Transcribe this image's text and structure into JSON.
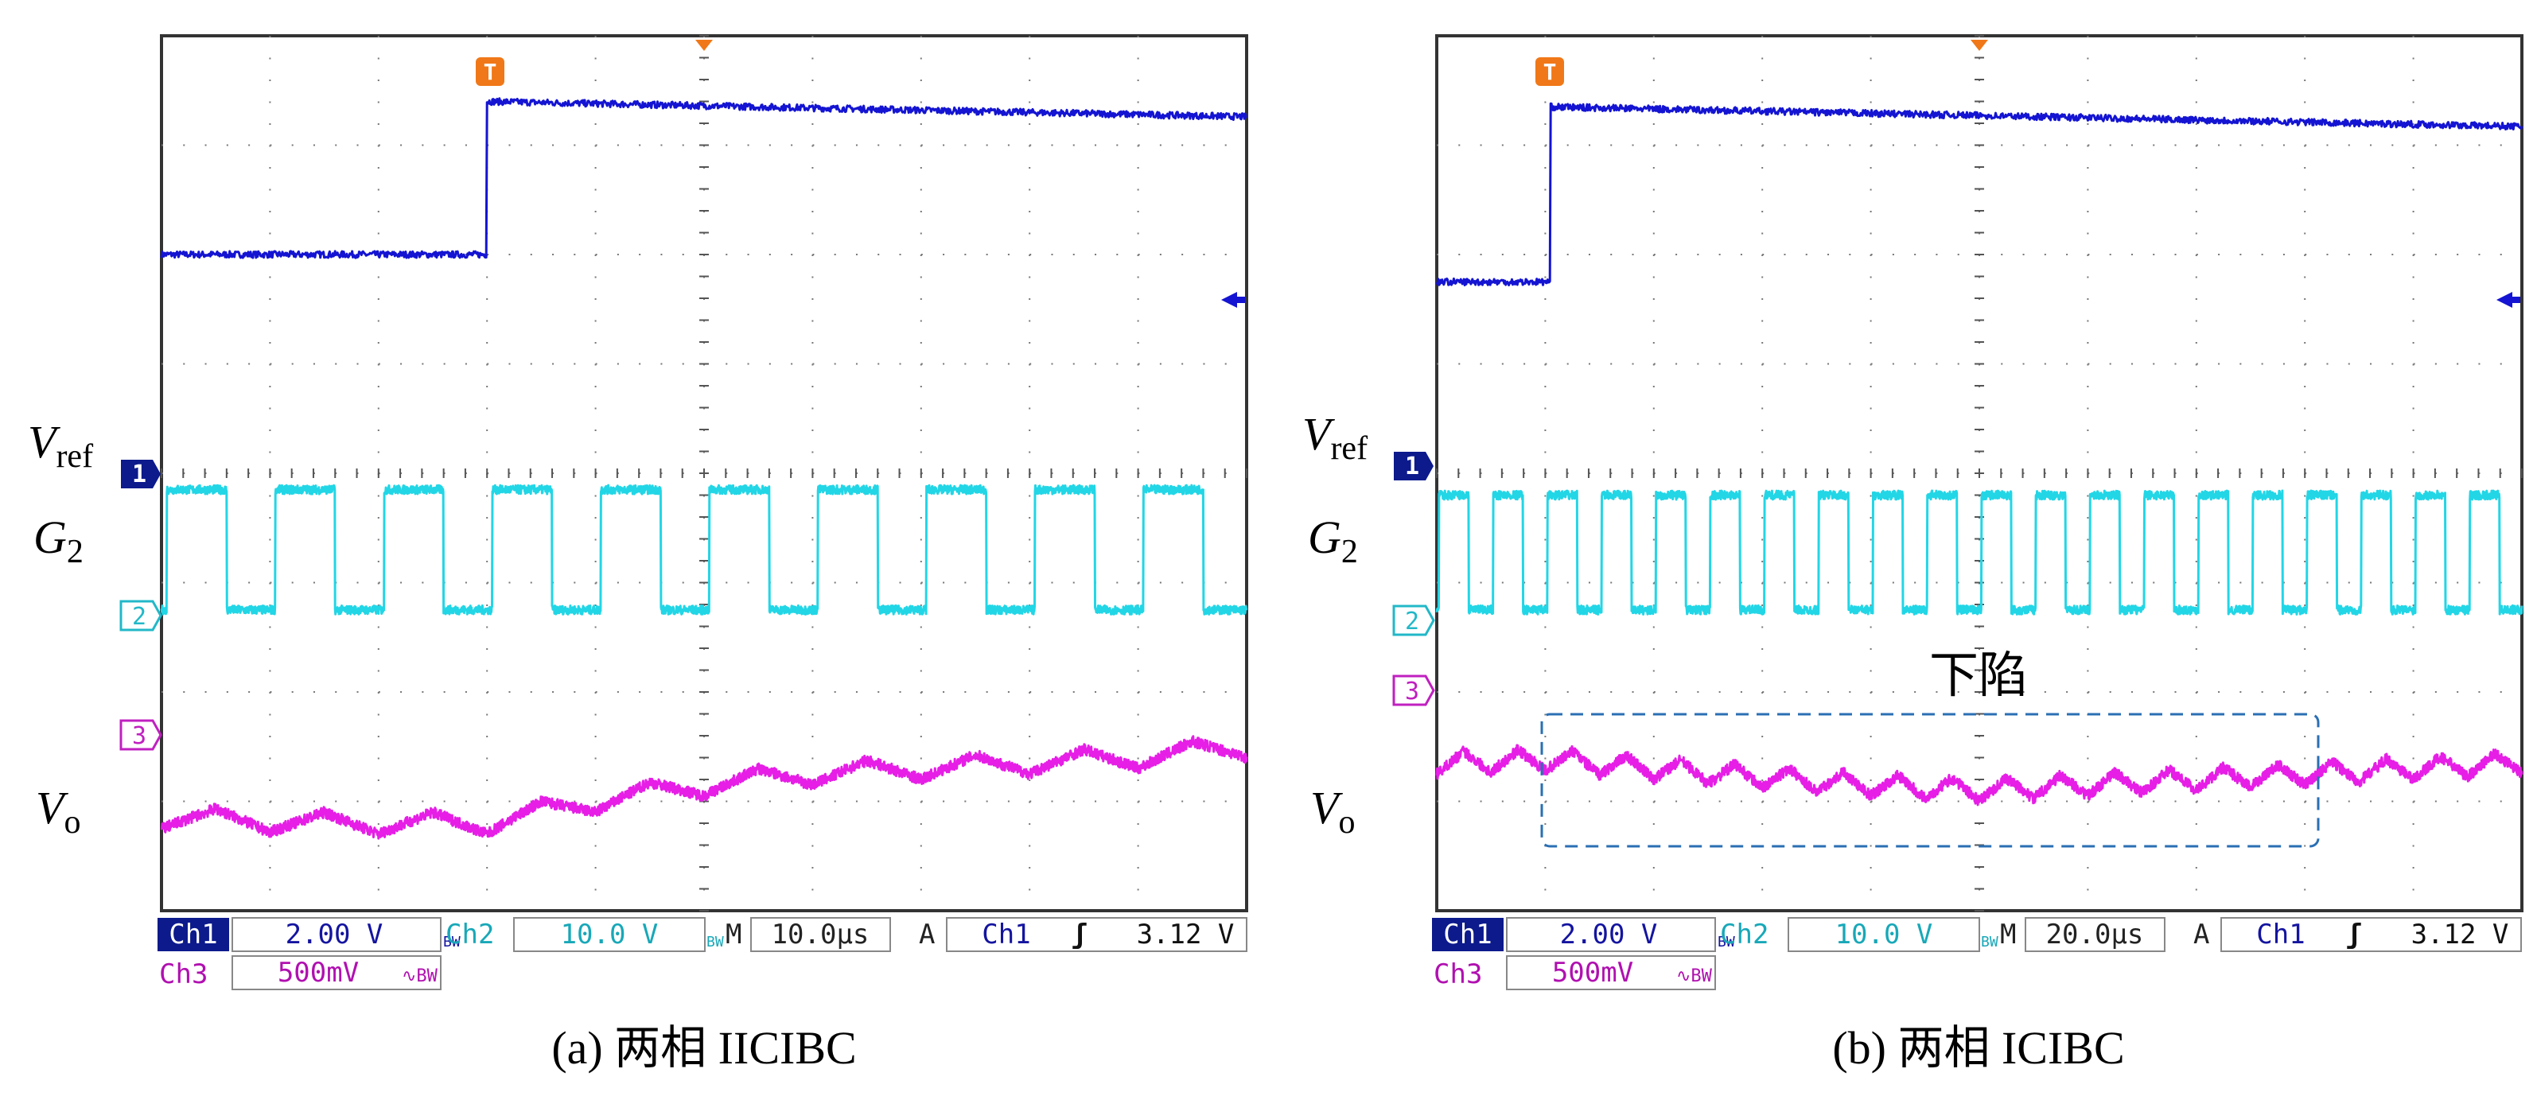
{
  "colors": {
    "ch1": "#1414d2",
    "ch2": "#22d6e6",
    "ch3": "#e61ee6",
    "trigger": "#f07818",
    "ch1_label_bg": "#0c1a8c",
    "grid": "#777777",
    "frame": "#333333",
    "annotation_box": "#2a6fb3"
  },
  "panels": [
    {
      "caption": "(a) 两相 IICIBC",
      "trace_labels": {
        "vref_main": "V",
        "vref_sub": "ref",
        "g2_main": "G",
        "g2_sub": "2",
        "vo_main": "V",
        "vo_sub": "o"
      },
      "channel_markers": [
        "1",
        "2",
        "3"
      ],
      "trigger_marker": "T",
      "status": {
        "ch1_label": "Ch1",
        "ch1_scale": "2.00 V",
        "bw1": "BW",
        "ch2_label": "Ch2",
        "ch2_scale": "10.0 V",
        "bw2": "BW",
        "timebase_label": "M",
        "timebase": "10.0µs",
        "trig_mode": "A",
        "trig_ch": "Ch1",
        "trig_slope": "ʃ",
        "trig_level": "3.12 V",
        "ch3_label": "Ch3",
        "ch3_scale": "500mV",
        "ch3_coupling": "∿BW"
      },
      "annotation": null
    },
    {
      "caption": "(b) 两相 ICIBC",
      "trace_labels": {
        "vref_main": "V",
        "vref_sub": "ref",
        "g2_main": "G",
        "g2_sub": "2",
        "vo_main": "V",
        "vo_sub": "o"
      },
      "channel_markers": [
        "1",
        "2",
        "3"
      ],
      "trigger_marker": "T",
      "status": {
        "ch1_label": "Ch1",
        "ch1_scale": "2.00 V",
        "bw1": "BW",
        "ch2_label": "Ch2",
        "ch2_scale": "10.0 V",
        "bw2": "BW",
        "timebase_label": "M",
        "timebase": "20.0µs",
        "trig_mode": "A",
        "trig_ch": "Ch1",
        "trig_slope": "ʃ",
        "trig_level": "3.12 V",
        "ch3_label": "Ch3",
        "ch3_scale": "500mV",
        "ch3_coupling": "∿BW"
      },
      "annotation": "下陷"
    }
  ],
  "chart_data": [
    {
      "type": "line",
      "x_unit": "div",
      "xlim": [
        0,
        10
      ],
      "ylim": [
        -4,
        4
      ],
      "grid": true,
      "divisions": {
        "x": 10,
        "y": 8
      },
      "series": [
        {
          "name": "Vref",
          "step": {
            "t_div": 3.0,
            "low_div": 2.0,
            "high_div": 3.4
          },
          "noise": 0.03
        },
        {
          "name": "G2",
          "square": {
            "period_div": 1.0,
            "high_frac": 0.55,
            "phase_div": 0.05,
            "low_div": -1.25,
            "high_div": -0.15
          },
          "noise": 0.04
        },
        {
          "name": "Vo",
          "x": [
            0,
            1.5,
            3.0,
            4.0,
            5.0,
            6.0,
            7.0,
            8.0,
            9.0,
            10.0
          ],
          "y": [
            -3.15,
            -3.2,
            -3.2,
            -3.0,
            -2.85,
            -2.75,
            -2.7,
            -2.65,
            -2.6,
            -2.5
          ],
          "ripple_period_div": 1.0,
          "ripple_amp": 0.1
        }
      ]
    },
    {
      "type": "line",
      "x_unit": "div",
      "xlim": [
        0,
        10
      ],
      "ylim": [
        -4,
        4
      ],
      "grid": true,
      "divisions": {
        "x": 10,
        "y": 8
      },
      "series": [
        {
          "name": "Vref",
          "step": {
            "t_div": 1.05,
            "low_div": 1.75,
            "high_div": 3.35
          },
          "noise": 0.03
        },
        {
          "name": "G2",
          "square": {
            "period_div": 0.5,
            "high_frac": 0.55,
            "phase_div": 0.02,
            "low_div": -1.25,
            "high_div": -0.2
          },
          "noise": 0.04
        },
        {
          "name": "Vo",
          "x": [
            0,
            1.0,
            2.0,
            3.0,
            4.0,
            5.0,
            6.0,
            7.0,
            8.0,
            9.0,
            10.0
          ],
          "y": [
            -2.65,
            -2.62,
            -2.7,
            -2.78,
            -2.85,
            -2.9,
            -2.85,
            -2.8,
            -2.75,
            -2.7,
            -2.65
          ],
          "ripple_period_div": 0.5,
          "ripple_amp": 0.1
        }
      ]
    }
  ]
}
